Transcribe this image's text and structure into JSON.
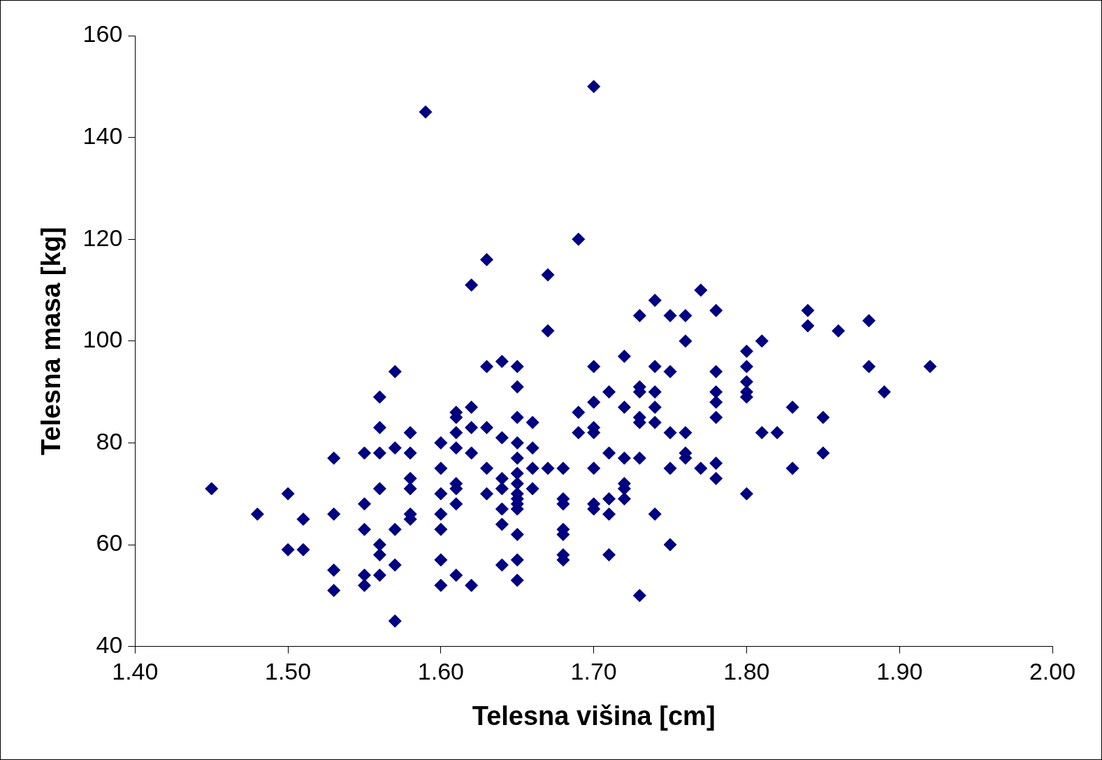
{
  "chart_data": {
    "type": "scatter",
    "xlabel": "Telesna višina [cm]",
    "ylabel": "Telesna masa [kg]",
    "xlim": [
      1.4,
      2.0
    ],
    "xticks": [
      {
        "value": 1.4,
        "label": "1.40"
      },
      {
        "value": 1.5,
        "label": "1.50"
      },
      {
        "value": 1.6,
        "label": "1.60"
      },
      {
        "value": 1.7,
        "label": "1.70"
      },
      {
        "value": 1.8,
        "label": "1.80"
      },
      {
        "value": 1.9,
        "label": "1.90"
      },
      {
        "value": 2.0,
        "label": "2.00"
      }
    ],
    "ylim": [
      40,
      160
    ],
    "yticks": [
      40,
      60,
      80,
      100,
      120,
      140,
      160
    ],
    "grid": false,
    "legend": false,
    "marker": "diamond",
    "series": [
      {
        "color": "#000080",
        "x": [
          1.45,
          1.48,
          1.5,
          1.5,
          1.51,
          1.51,
          1.53,
          1.53,
          1.53,
          1.53,
          1.55,
          1.55,
          1.55,
          1.55,
          1.55,
          1.56,
          1.56,
          1.56,
          1.56,
          1.56,
          1.56,
          1.56,
          1.57,
          1.57,
          1.57,
          1.57,
          1.57,
          1.58,
          1.58,
          1.58,
          1.58,
          1.58,
          1.58,
          1.59,
          1.6,
          1.6,
          1.6,
          1.6,
          1.6,
          1.6,
          1.6,
          1.61,
          1.61,
          1.61,
          1.61,
          1.61,
          1.61,
          1.61,
          1.61,
          1.62,
          1.62,
          1.62,
          1.62,
          1.62,
          1.63,
          1.63,
          1.63,
          1.63,
          1.63,
          1.64,
          1.64,
          1.64,
          1.64,
          1.64,
          1.64,
          1.64,
          1.65,
          1.65,
          1.65,
          1.65,
          1.65,
          1.65,
          1.65,
          1.65,
          1.65,
          1.65,
          1.65,
          1.65,
          1.65,
          1.65,
          1.66,
          1.66,
          1.66,
          1.66,
          1.67,
          1.67,
          1.67,
          1.68,
          1.68,
          1.68,
          1.68,
          1.68,
          1.68,
          1.68,
          1.69,
          1.69,
          1.69,
          1.7,
          1.7,
          1.7,
          1.7,
          1.7,
          1.7,
          1.7,
          1.7,
          1.71,
          1.71,
          1.71,
          1.71,
          1.71,
          1.72,
          1.72,
          1.72,
          1.72,
          1.72,
          1.72,
          1.73,
          1.73,
          1.73,
          1.73,
          1.73,
          1.73,
          1.73,
          1.74,
          1.74,
          1.74,
          1.74,
          1.74,
          1.74,
          1.75,
          1.75,
          1.75,
          1.75,
          1.75,
          1.76,
          1.76,
          1.76,
          1.76,
          1.76,
          1.77,
          1.77,
          1.78,
          1.78,
          1.78,
          1.78,
          1.78,
          1.78,
          1.78,
          1.8,
          1.8,
          1.8,
          1.8,
          1.8,
          1.8,
          1.81,
          1.81,
          1.82,
          1.83,
          1.83,
          1.84,
          1.84,
          1.85,
          1.85,
          1.86,
          1.88,
          1.88,
          1.89,
          1.92
        ],
        "values": [
          71,
          66,
          70,
          59,
          65,
          59,
          77,
          66,
          55,
          51,
          78,
          68,
          63,
          54,
          52,
          89,
          83,
          78,
          71,
          60,
          58,
          54,
          94,
          79,
          63,
          56,
          45,
          82,
          78,
          73,
          71,
          66,
          65,
          145,
          80,
          75,
          70,
          66,
          63,
          57,
          52,
          86,
          85,
          82,
          79,
          72,
          71,
          68,
          54,
          111,
          87,
          83,
          78,
          52,
          116,
          95,
          83,
          75,
          70,
          96,
          81,
          73,
          71,
          67,
          64,
          56,
          95,
          91,
          85,
          80,
          77,
          74,
          72,
          70,
          69,
          68,
          67,
          62,
          57,
          53,
          84,
          79,
          75,
          71,
          113,
          102,
          75,
          75,
          69,
          68,
          63,
          62,
          58,
          57,
          120,
          86,
          82,
          150,
          95,
          88,
          83,
          82,
          75,
          68,
          67,
          90,
          78,
          69,
          66,
          58,
          97,
          87,
          77,
          72,
          71,
          69,
          105,
          91,
          90,
          85,
          84,
          77,
          50,
          108,
          95,
          90,
          87,
          84,
          66,
          105,
          94,
          82,
          75,
          60,
          105,
          100,
          82,
          78,
          77,
          110,
          75,
          106,
          94,
          90,
          88,
          85,
          76,
          73,
          98,
          95,
          92,
          90,
          89,
          70,
          100,
          82,
          82,
          87,
          75,
          106,
          103,
          85,
          78,
          102,
          104,
          95,
          90,
          95
        ]
      }
    ]
  }
}
